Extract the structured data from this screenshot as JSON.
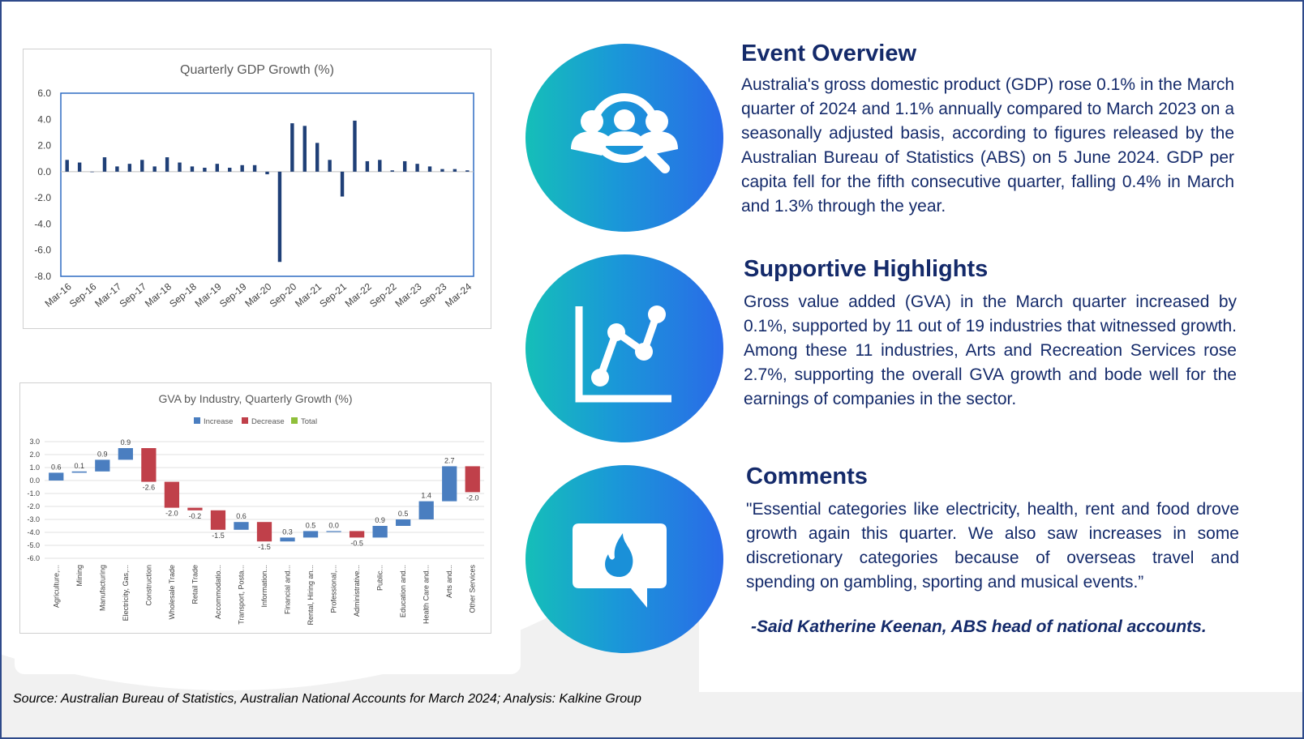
{
  "source_note": "Source: Australian Bureau of Statistics, Australian National Accounts for March 2024; Analysis: Kalkine Group",
  "sections": [
    {
      "icon": "magnifier-people-icon",
      "title": "Event Overview",
      "body": "Australia's gross domestic product (GDP) rose 0.1% in the March quarter of 2024 and 1.1% annually compared to March 2023 on a seasonally adjusted basis, according to figures released by the Australian Bureau of Statistics (ABS) on 5 June 2024. GDP per capita fell for the fifth consecutive quarter, falling 0.4% in March and 1.3% through the year."
    },
    {
      "icon": "line-chart-icon",
      "title": "Supportive Highlights",
      "body": "Gross value added (GVA) in the March quarter increased by 0.1%, supported by 11 out of 19 industries that witnessed growth. Among these 11 industries, Arts and Recreation Services rose 2.7%, supporting the overall GVA growth and bode well for the earnings of companies in the sector."
    },
    {
      "icon": "comment-fire-icon",
      "title": "Comments",
      "body": "\"Essential categories like electricity, health, rent and food drove growth again this quarter. We also saw increases in some discretionary categories because of overseas travel and spending on gambling, sporting and musical events.”",
      "attribution": "-Said Katherine Keenan, ABS head of national accounts."
    }
  ],
  "chart_data": [
    {
      "type": "bar",
      "title": "Quarterly GDP Growth (%)",
      "xlabel": "",
      "ylabel": "",
      "ylim": [
        -8.0,
        6.0
      ],
      "yticks": [
        "6.0",
        "4.0",
        "2.0",
        "0.0",
        "-2.0",
        "-4.0",
        "-6.0",
        "-8.0"
      ],
      "x_tick_labels": [
        "Mar-16",
        "Sep-16",
        "Mar-17",
        "Sep-17",
        "Mar-18",
        "Sep-18",
        "Mar-19",
        "Sep-19",
        "Mar-20",
        "Sep-20",
        "Mar-21",
        "Sep-21",
        "Mar-22",
        "Sep-22",
        "Mar-23",
        "Sep-23",
        "Mar-24"
      ],
      "categories": [
        "Mar-16",
        "Jun-16",
        "Sep-16",
        "Dec-16",
        "Mar-17",
        "Jun-17",
        "Sep-17",
        "Dec-17",
        "Mar-18",
        "Jun-18",
        "Sep-18",
        "Dec-18",
        "Mar-19",
        "Jun-19",
        "Sep-19",
        "Dec-19",
        "Mar-20",
        "Jun-20",
        "Sep-20",
        "Dec-20",
        "Mar-21",
        "Jun-21",
        "Sep-21",
        "Dec-21",
        "Mar-22",
        "Jun-22",
        "Sep-22",
        "Dec-22",
        "Mar-23",
        "Jun-23",
        "Sep-23",
        "Dec-23",
        "Mar-24"
      ],
      "values": [
        0.9,
        0.7,
        0.0,
        1.1,
        0.4,
        0.6,
        0.9,
        0.4,
        1.1,
        0.7,
        0.4,
        0.3,
        0.6,
        0.3,
        0.5,
        0.5,
        -0.2,
        -6.9,
        3.7,
        3.5,
        2.2,
        0.9,
        -1.9,
        3.9,
        0.8,
        0.9,
        0.1,
        0.8,
        0.6,
        0.4,
        0.2,
        0.2,
        0.1
      ],
      "color": "#1f3f77",
      "grid": false
    },
    {
      "type": "bar",
      "subtype": "waterfall",
      "title": "GVA by Industry, Quarterly Growth (%)",
      "legend": [
        "Increase",
        "Decrease",
        "Total"
      ],
      "legend_colors": [
        "#4a7ec0",
        "#c0404a",
        "#8fbf3a"
      ],
      "legend_position": "top",
      "ylim": [
        -6.0,
        3.0
      ],
      "yticks": [
        "3.0",
        "2.0",
        "1.0",
        "0.0",
        "-1.0",
        "-2.0",
        "-3.0",
        "-4.0",
        "-5.0",
        "-6.0"
      ],
      "grid": true,
      "categories": [
        "Agriculture,...",
        "Mining",
        "Manufacturing",
        "Electricity, Gas,...",
        "Construction",
        "Wholesale Trade",
        "Retail Trade",
        "Accommodatio...",
        "Transport, Posta...",
        "Information...",
        "Financial and...",
        "Rental, Hiring an...",
        "Professional,...",
        "Administrative...",
        "Public...",
        "Education and...",
        "Health Care and...",
        "Arts and...",
        "Other Services"
      ],
      "values": [
        0.6,
        0.1,
        0.9,
        0.9,
        -2.6,
        -2.0,
        -0.2,
        -1.5,
        0.6,
        -1.5,
        0.3,
        0.5,
        0.0,
        -0.5,
        0.9,
        0.5,
        1.4,
        2.7,
        -2.0
      ],
      "value_labels": [
        "0.6",
        "0.1",
        "0.9",
        "0.9",
        "-2.6",
        "-2.0",
        "-0.2",
        "-1.5",
        "0.6",
        "-1.5",
        "0.3",
        "0.5",
        "0.0",
        "-0.5",
        "0.9",
        "0.5",
        "1.4",
        "2.7",
        "-2.0"
      ],
      "start": [
        0.0,
        0.6,
        0.7,
        1.6,
        2.5,
        -0.1,
        -2.1,
        -2.3,
        -3.8,
        -3.2,
        -4.7,
        -4.4,
        -3.9,
        -3.9,
        -4.4,
        -3.5,
        -3.0,
        -1.6,
        1.1
      ]
    }
  ]
}
